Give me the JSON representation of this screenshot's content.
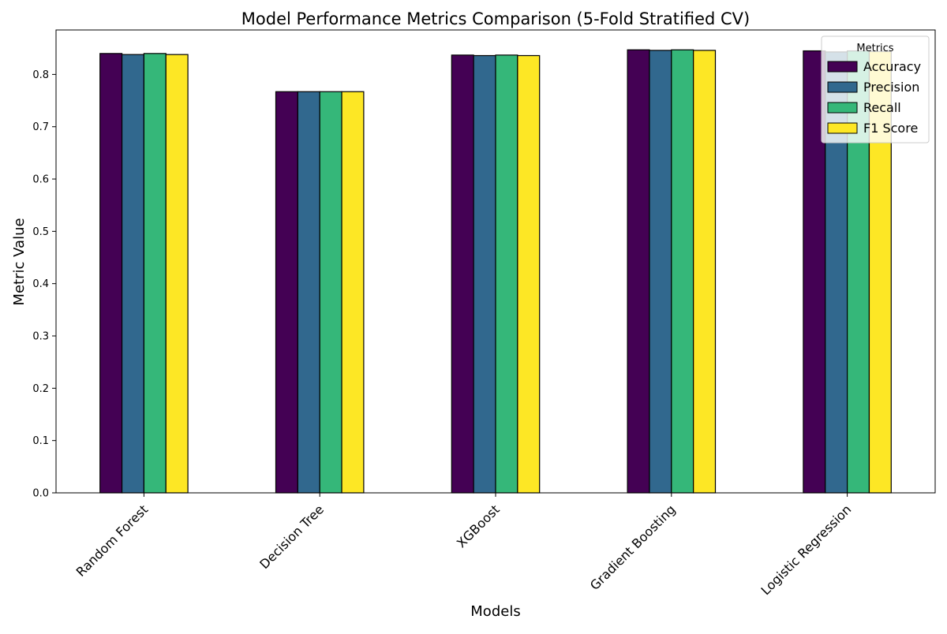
{
  "chart_data": {
    "type": "bar",
    "title": "Model Performance Metrics Comparison (5-Fold Stratified CV)",
    "xlabel": "Models",
    "ylabel": "Metric Value",
    "ylim": [
      0,
      0.885
    ],
    "yticks": [
      "0.0",
      "0.1",
      "0.2",
      "0.3",
      "0.4",
      "0.5",
      "0.6",
      "0.7",
      "0.8"
    ],
    "grid": false,
    "legend_title": "Metrics",
    "legend_position": "top-right",
    "categories": [
      "Random Forest",
      "Decision Tree",
      "XGBoost",
      "Gradient Boosting",
      "Logistic Regression"
    ],
    "series": [
      {
        "name": "Accuracy",
        "color": "#440154",
        "values": [
          0.84,
          0.767,
          0.837,
          0.847,
          0.845
        ]
      },
      {
        "name": "Precision",
        "color": "#31688e",
        "values": [
          0.838,
          0.767,
          0.836,
          0.846,
          0.843
        ]
      },
      {
        "name": "Recall",
        "color": "#35b779",
        "values": [
          0.84,
          0.767,
          0.837,
          0.847,
          0.845
        ]
      },
      {
        "name": "F1 Score",
        "color": "#fde725",
        "values": [
          0.838,
          0.767,
          0.836,
          0.846,
          0.844
        ]
      }
    ]
  }
}
